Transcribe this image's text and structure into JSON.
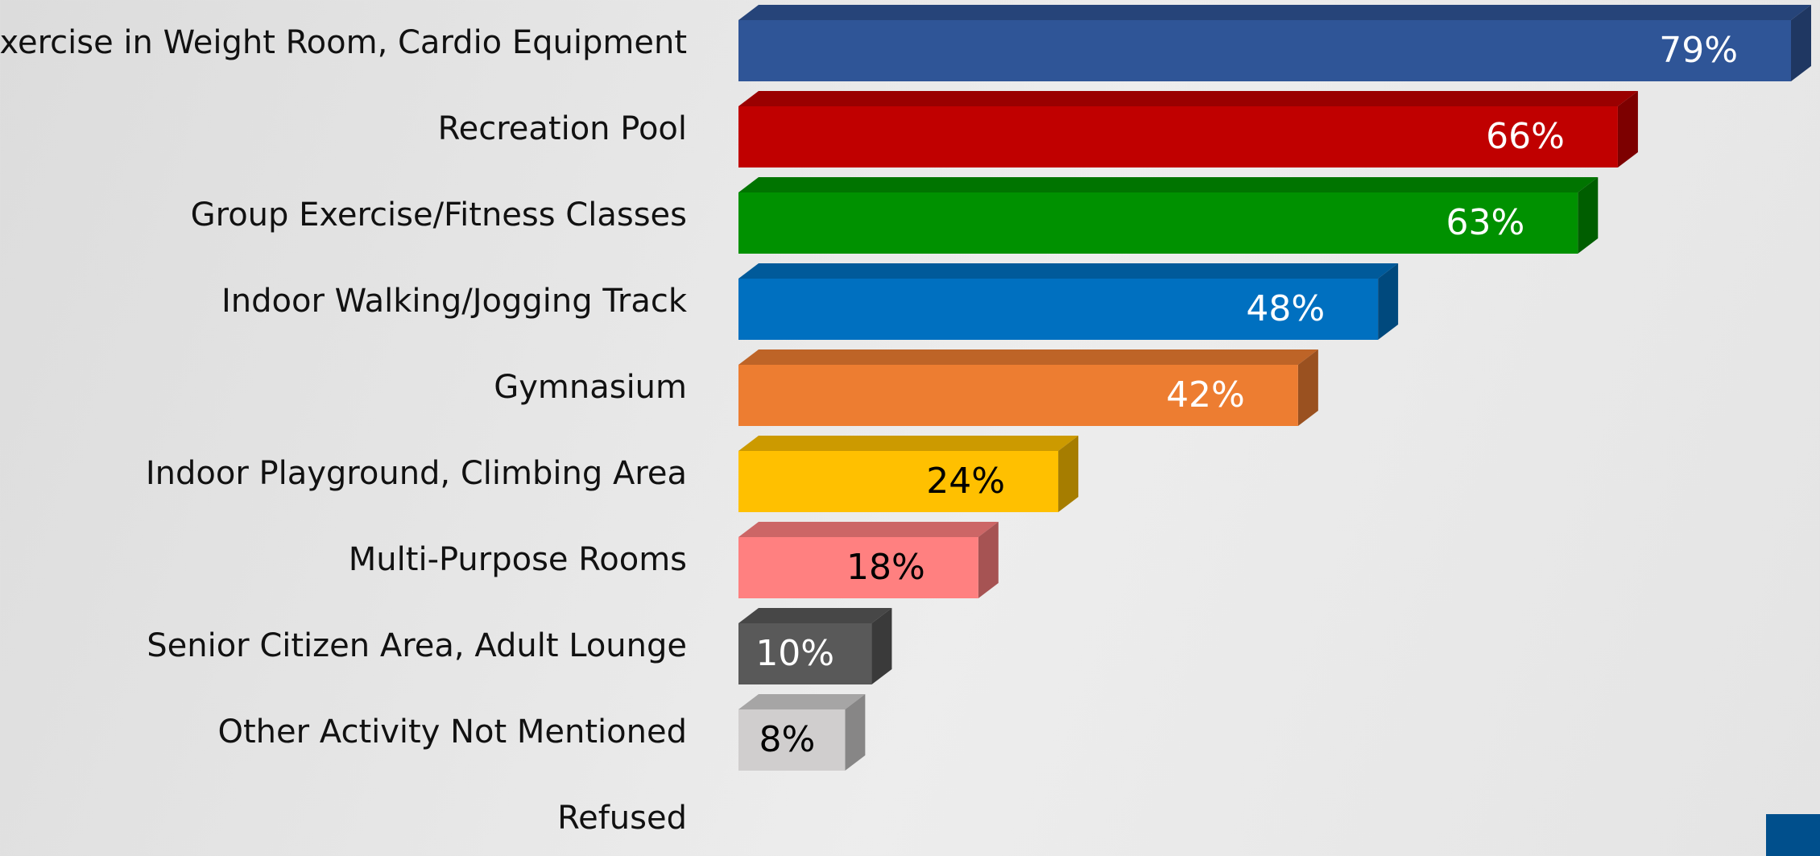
{
  "chart_data": {
    "type": "bar3d",
    "categories": [
      "Exercise in Weight Room, Cardio Equipment",
      "Recreation Pool",
      "Group Exercise/Fitness Classes",
      "Indoor Walking/Jogging Track",
      "Gymnasium",
      "Indoor Playground, Climbing Area",
      "Multi-Purpose Rooms",
      "Senior Citizen Area, Adult Lounge",
      "Other Activity Not Mentioned",
      "Refused"
    ],
    "values": [
      79,
      66,
      63,
      48,
      42,
      24,
      18,
      10,
      8,
      null
    ],
    "value_labels": [
      "79%",
      "66%",
      "63%",
      "48%",
      "42%",
      "24%",
      "18%",
      "10%",
      "8%",
      null
    ],
    "colors": [
      "#2f5597",
      "#c00000",
      "#009100",
      "#0070c0",
      "#ed7d31",
      "#ffc000",
      "#ff8080",
      "#595959",
      "#d0cece",
      "#808080"
    ],
    "label_colors": [
      "#ffffff",
      "#ffffff",
      "#ffffff",
      "#ffffff",
      "#ffffff",
      "#000000",
      "#000000",
      "#ffffff",
      "#000000",
      "#000000"
    ]
  }
}
